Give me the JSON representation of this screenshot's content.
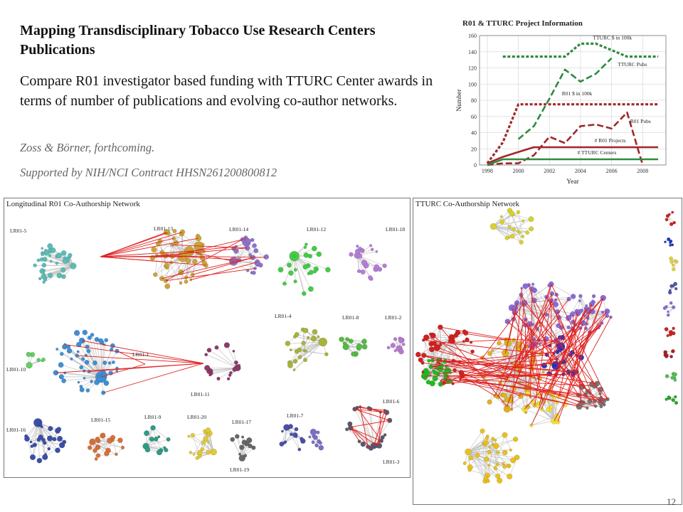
{
  "slide": {
    "title": "Mapping Transdisciplinary Tobacco Use Research Centers Publications",
    "description": "Compare  R01 investigator based funding with TTURC Center awards in terms of number of publications and evolving co-author networks.",
    "citation": "Zoss & Börner, forthcoming.",
    "support": "Supported by NIH/NCI Contract HHSN261200800812",
    "page_number": "12"
  },
  "colors": {
    "chart_line": "#2e8b3e",
    "chart_dark": "#a0282a",
    "edge_red": "#e02020",
    "edge_gray": "#bdbdbd"
  },
  "chart_data": {
    "type": "line",
    "title": "R01 & TTURC Project Information",
    "xlabel": "Year",
    "ylabel": "Number",
    "xlim": [
      1997.5,
      2009.5
    ],
    "ylim": [
      0,
      160
    ],
    "x_ticks": [
      "1998",
      "2000",
      "2002",
      "2004",
      "2006",
      "2008"
    ],
    "y_ticks": [
      "0",
      "20",
      "40",
      "60",
      "80",
      "100",
      "120",
      "140",
      "160"
    ],
    "series": [
      {
        "name": "TTURC $ in 100k",
        "color": "#2e8b3e",
        "dash": "dotted",
        "width": 3.2,
        "x": [
          1999,
          2000,
          2001,
          2002,
          2003,
          2004,
          2005,
          2006,
          2007,
          2008,
          2009
        ],
        "y": [
          134,
          134,
          134,
          134,
          134,
          150,
          150,
          142,
          134,
          134,
          134
        ]
      },
      {
        "name": "TTURC Pubs",
        "color": "#2e8b3e",
        "dash": "dashed",
        "width": 2.6,
        "x": [
          2000,
          2001,
          2002,
          2003,
          2004,
          2005,
          2006
        ],
        "y": [
          32,
          48,
          82,
          118,
          103,
          113,
          132
        ]
      },
      {
        "name": "R01 $ in 100k",
        "color": "#a0282a",
        "dash": "dotted",
        "width": 3.2,
        "x": [
          1998,
          1999,
          2000,
          2001,
          2002,
          2003,
          2004,
          2005,
          2006,
          2007,
          2008,
          2009
        ],
        "y": [
          2,
          28,
          75,
          75,
          75,
          75,
          75,
          75,
          75,
          75,
          75,
          75
        ]
      },
      {
        "name": "R01 Pubs",
        "color": "#a0282a",
        "dash": "dashed",
        "width": 2.6,
        "x": [
          1998,
          1999,
          2000,
          2001,
          2002,
          2003,
          2004,
          2005,
          2006,
          2007,
          2008
        ],
        "y": [
          0,
          2,
          2,
          12,
          35,
          27,
          48,
          50,
          45,
          65,
          0
        ]
      },
      {
        "name": "# R01 Projects",
        "color": "#a0282a",
        "dash": "solid",
        "width": 2.6,
        "x": [
          1998,
          1999,
          2000,
          2001,
          2002,
          2003,
          2004,
          2005,
          2006,
          2007,
          2008,
          2009
        ],
        "y": [
          2,
          10,
          16,
          22,
          22,
          22,
          22,
          22,
          22,
          22,
          22,
          22
        ]
      },
      {
        "name": "# TTURC Centers",
        "color": "#2e8b3e",
        "dash": "solid",
        "width": 2.6,
        "x": [
          1998,
          1999,
          2000,
          2001,
          2002,
          2003,
          2004,
          2005,
          2006,
          2007,
          2008,
          2009
        ],
        "y": [
          0,
          7,
          7,
          7,
          7,
          7,
          7,
          7,
          7,
          7,
          7,
          7
        ]
      }
    ]
  },
  "networks": {
    "r01": {
      "title": "Longitudinal R01 Co-Authorship Network",
      "labels": [
        "LR01-5",
        "LR01-13",
        "LR01-14",
        "LR01-12",
        "LR01-18",
        "LR01-4",
        "LR01-8",
        "LR01-2",
        "LR01-10",
        "LR01-1",
        "LR01-11",
        "LR01-16",
        "LR01-15",
        "LR01-9",
        "LR01-20",
        "LR01-17",
        "LR01-7",
        "LR01-6",
        "LR01-3",
        "LR01-19"
      ]
    },
    "tturc": {
      "title": "TTURC Co-Authorship Network"
    }
  }
}
